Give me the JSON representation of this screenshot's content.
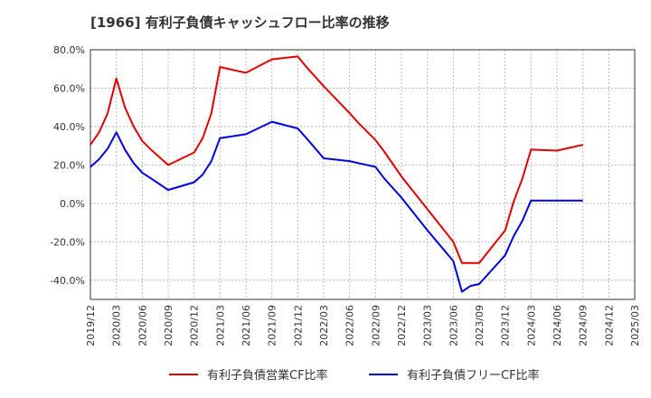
{
  "chart_data": {
    "type": "line",
    "title": "[1966]  有利子負債キャッシュフロー比率の推移",
    "xlabel": "",
    "ylabel": "",
    "ylim": [
      -50,
      80
    ],
    "xlim": [
      "2019-12",
      "2025-03"
    ],
    "grid": true,
    "legend_position": "bottom",
    "y_ticks": [
      {
        "value": 80,
        "label": "80.0%"
      },
      {
        "value": 60,
        "label": "60.0%"
      },
      {
        "value": 40,
        "label": "40.0%"
      },
      {
        "value": 20,
        "label": "20.0%"
      },
      {
        "value": 0,
        "label": "0.0%"
      },
      {
        "value": -20,
        "label": "-20.0%"
      },
      {
        "value": -40,
        "label": "-40.0%"
      }
    ],
    "x_ticks": [
      "2019/12",
      "2020/03",
      "2020/06",
      "2020/09",
      "2020/12",
      "2021/03",
      "2021/06",
      "2021/09",
      "2021/12",
      "2022/03",
      "2022/06",
      "2022/09",
      "2022/12",
      "2023/03",
      "2023/06",
      "2023/09",
      "2023/12",
      "2024/03",
      "2024/06",
      "2024/09",
      "2024/12",
      "2025/03"
    ],
    "series": [
      {
        "name": "有利子負債営業CF比率",
        "color": "#e00000",
        "points": [
          [
            "2019-12",
            30.5
          ],
          [
            "2020-01",
            37.0
          ],
          [
            "2020-02",
            47.0
          ],
          [
            "2020-03",
            65.0
          ],
          [
            "2020-04",
            50.0
          ],
          [
            "2020-05",
            40.0
          ],
          [
            "2020-06",
            32.5
          ],
          [
            "2020-07",
            28.0
          ],
          [
            "2020-09",
            20.0
          ],
          [
            "2020-12",
            26.5
          ],
          [
            "2021-01",
            34.0
          ],
          [
            "2021-02",
            47.0
          ],
          [
            "2021-03",
            71.0
          ],
          [
            "2021-06",
            68.0
          ],
          [
            "2021-09",
            75.0
          ],
          [
            "2021-12",
            76.5
          ],
          [
            "2022-01",
            71.0
          ],
          [
            "2022-03",
            61.0
          ],
          [
            "2022-06",
            47.0
          ],
          [
            "2022-07",
            42.0
          ],
          [
            "2022-09",
            33.0
          ],
          [
            "2022-10",
            27.0
          ],
          [
            "2022-12",
            14.0
          ],
          [
            "2023-03",
            -3.0
          ],
          [
            "2023-06",
            -20.0
          ],
          [
            "2023-07",
            -31.0
          ],
          [
            "2023-09",
            -31.0
          ],
          [
            "2023-12",
            -14.0
          ],
          [
            "2024-01",
            1.0
          ],
          [
            "2024-02",
            13.0
          ],
          [
            "2024-03",
            28.0
          ],
          [
            "2024-06",
            27.5
          ],
          [
            "2024-09",
            30.5
          ]
        ]
      },
      {
        "name": "有利子負債フリーCF比率",
        "color": "#0000dd",
        "points": [
          [
            "2019-12",
            19.0
          ],
          [
            "2020-01",
            23.0
          ],
          [
            "2020-02",
            28.5
          ],
          [
            "2020-03",
            37.0
          ],
          [
            "2020-04",
            28.0
          ],
          [
            "2020-05",
            21.0
          ],
          [
            "2020-06",
            16.0
          ],
          [
            "2020-07",
            13.0
          ],
          [
            "2020-09",
            7.0
          ],
          [
            "2020-12",
            11.0
          ],
          [
            "2021-01",
            15.0
          ],
          [
            "2021-02",
            22.0
          ],
          [
            "2021-03",
            34.0
          ],
          [
            "2021-06",
            36.0
          ],
          [
            "2021-09",
            42.5
          ],
          [
            "2021-12",
            39.0
          ],
          [
            "2022-01",
            34.0
          ],
          [
            "2022-03",
            23.5
          ],
          [
            "2022-06",
            22.0
          ],
          [
            "2022-07",
            21.0
          ],
          [
            "2022-09",
            19.0
          ],
          [
            "2022-10",
            13.0
          ],
          [
            "2022-12",
            3.0
          ],
          [
            "2023-03",
            -14.0
          ],
          [
            "2023-06",
            -30.0
          ],
          [
            "2023-07",
            -46.0
          ],
          [
            "2023-08",
            -43.0
          ],
          [
            "2023-09",
            -42.0
          ],
          [
            "2023-12",
            -27.0
          ],
          [
            "2024-01",
            -17.0
          ],
          [
            "2024-02",
            -9.0
          ],
          [
            "2024-03",
            1.5
          ],
          [
            "2024-06",
            1.5
          ],
          [
            "2024-09",
            1.5
          ]
        ]
      }
    ]
  }
}
